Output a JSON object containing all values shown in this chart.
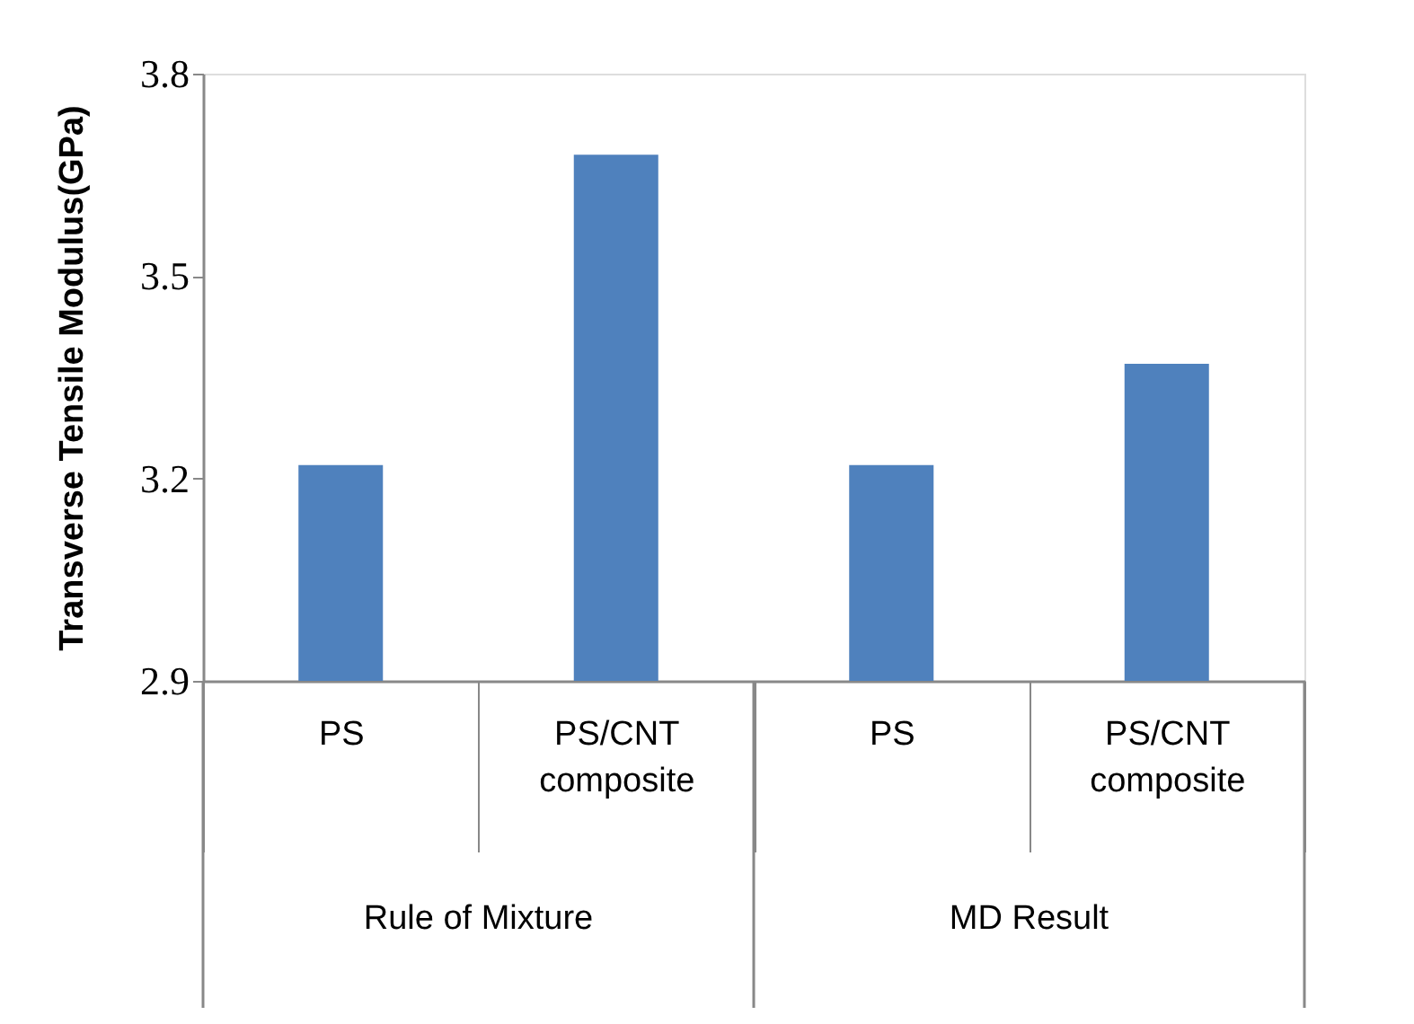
{
  "chart_data": {
    "type": "bar",
    "ylabel": "Transverse Tensile Modulus(GPa)",
    "categories": [
      "PS",
      "PS/CNT composite",
      "PS",
      "PS/CNT composite"
    ],
    "values": [
      3.22,
      3.68,
      3.22,
      3.37
    ],
    "color": "#4f81bd",
    "ylim": [
      2.9,
      3.8
    ],
    "yticks": [
      2.9,
      3.2,
      3.5,
      3.8
    ],
    "annotations": [
      "Rule of Mixture",
      "MD Result"
    ]
  }
}
